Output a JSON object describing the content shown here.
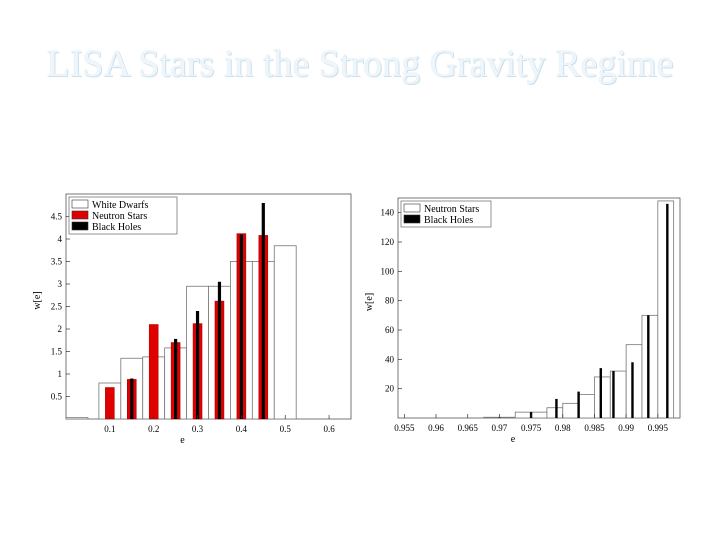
{
  "slide": {
    "title": "LISA Stars in the Strong Gravity Regime"
  },
  "chart_data": [
    {
      "type": "bar",
      "xlabel": "e",
      "ylabel": "w[e]",
      "xlim": [
        0,
        0.65
      ],
      "ylim": [
        0,
        5
      ],
      "xticks": [
        "0.1",
        "0.2",
        "0.3",
        "0.4",
        "0.5",
        "0.6"
      ],
      "yticks": [
        "0.5",
        "1",
        "1.5",
        "2",
        "2.5",
        "3",
        "3.5",
        "4",
        "4.5"
      ],
      "legend": "top-left",
      "series": [
        {
          "name": "White Dwarfs",
          "style": "outline",
          "color": "#ffffff",
          "bins": [
            [
              0.0,
              0.05,
              0.03
            ],
            [
              0.075,
              0.125,
              0.8
            ],
            [
              0.125,
              0.175,
              1.35
            ],
            [
              0.175,
              0.225,
              1.38
            ],
            [
              0.225,
              0.275,
              1.58
            ],
            [
              0.275,
              0.325,
              2.95
            ],
            [
              0.325,
              0.375,
              2.95
            ],
            [
              0.375,
              0.425,
              3.5
            ],
            [
              0.425,
              0.475,
              3.5
            ],
            [
              0.475,
              0.525,
              3.85
            ]
          ]
        },
        {
          "name": "Neutron Stars",
          "style": "bar",
          "color": "#e00000",
          "bars": [
            [
              0.1,
              0.7
            ],
            [
              0.15,
              0.88
            ],
            [
              0.2,
              2.1
            ],
            [
              0.25,
              1.7
            ],
            [
              0.3,
              2.12
            ],
            [
              0.35,
              2.62
            ],
            [
              0.4,
              4.12
            ],
            [
              0.45,
              4.08
            ]
          ]
        },
        {
          "name": "Black Holes",
          "style": "line",
          "color": "#000000",
          "bars": [
            [
              0.15,
              0.9
            ],
            [
              0.25,
              1.78
            ],
            [
              0.3,
              2.4
            ],
            [
              0.35,
              3.05
            ],
            [
              0.4,
              4.1
            ],
            [
              0.45,
              4.8
            ]
          ]
        }
      ]
    },
    {
      "type": "bar",
      "xlabel": "e",
      "ylabel": "w[e]",
      "xlim": [
        0.954,
        0.9985
      ],
      "ylim": [
        0,
        150
      ],
      "xticks": [
        "0.955",
        "0.96",
        "0.965",
        "0.97",
        "0.975",
        "0.98",
        "0.985",
        "0.99",
        "0.995"
      ],
      "yticks": [
        "20",
        "40",
        "60",
        "80",
        "100",
        "120",
        "140"
      ],
      "legend": "top-left",
      "series": [
        {
          "name": "Neutron Stars",
          "style": "outline",
          "color": "#ffffff",
          "bins": [
            [
              0.9675,
              0.9725,
              0.5
            ],
            [
              0.9725,
              0.9775,
              4
            ],
            [
              0.9775,
              0.98,
              7
            ],
            [
              0.98,
              0.9825,
              10
            ],
            [
              0.9825,
              0.985,
              16
            ],
            [
              0.985,
              0.9875,
              28
            ],
            [
              0.9875,
              0.99,
              32
            ],
            [
              0.99,
              0.9925,
              50
            ],
            [
              0.9925,
              0.995,
              70
            ],
            [
              0.995,
              0.9975,
              148
            ]
          ]
        },
        {
          "name": "Black Holes",
          "style": "line",
          "color": "#000000",
          "bars": [
            [
              0.97,
              0.3
            ],
            [
              0.975,
              4
            ],
            [
              0.979,
              13
            ],
            [
              0.9825,
              18
            ],
            [
              0.986,
              34
            ],
            [
              0.988,
              32
            ],
            [
              0.991,
              38
            ],
            [
              0.9935,
              70
            ],
            [
              0.9965,
              146
            ]
          ]
        }
      ]
    }
  ]
}
